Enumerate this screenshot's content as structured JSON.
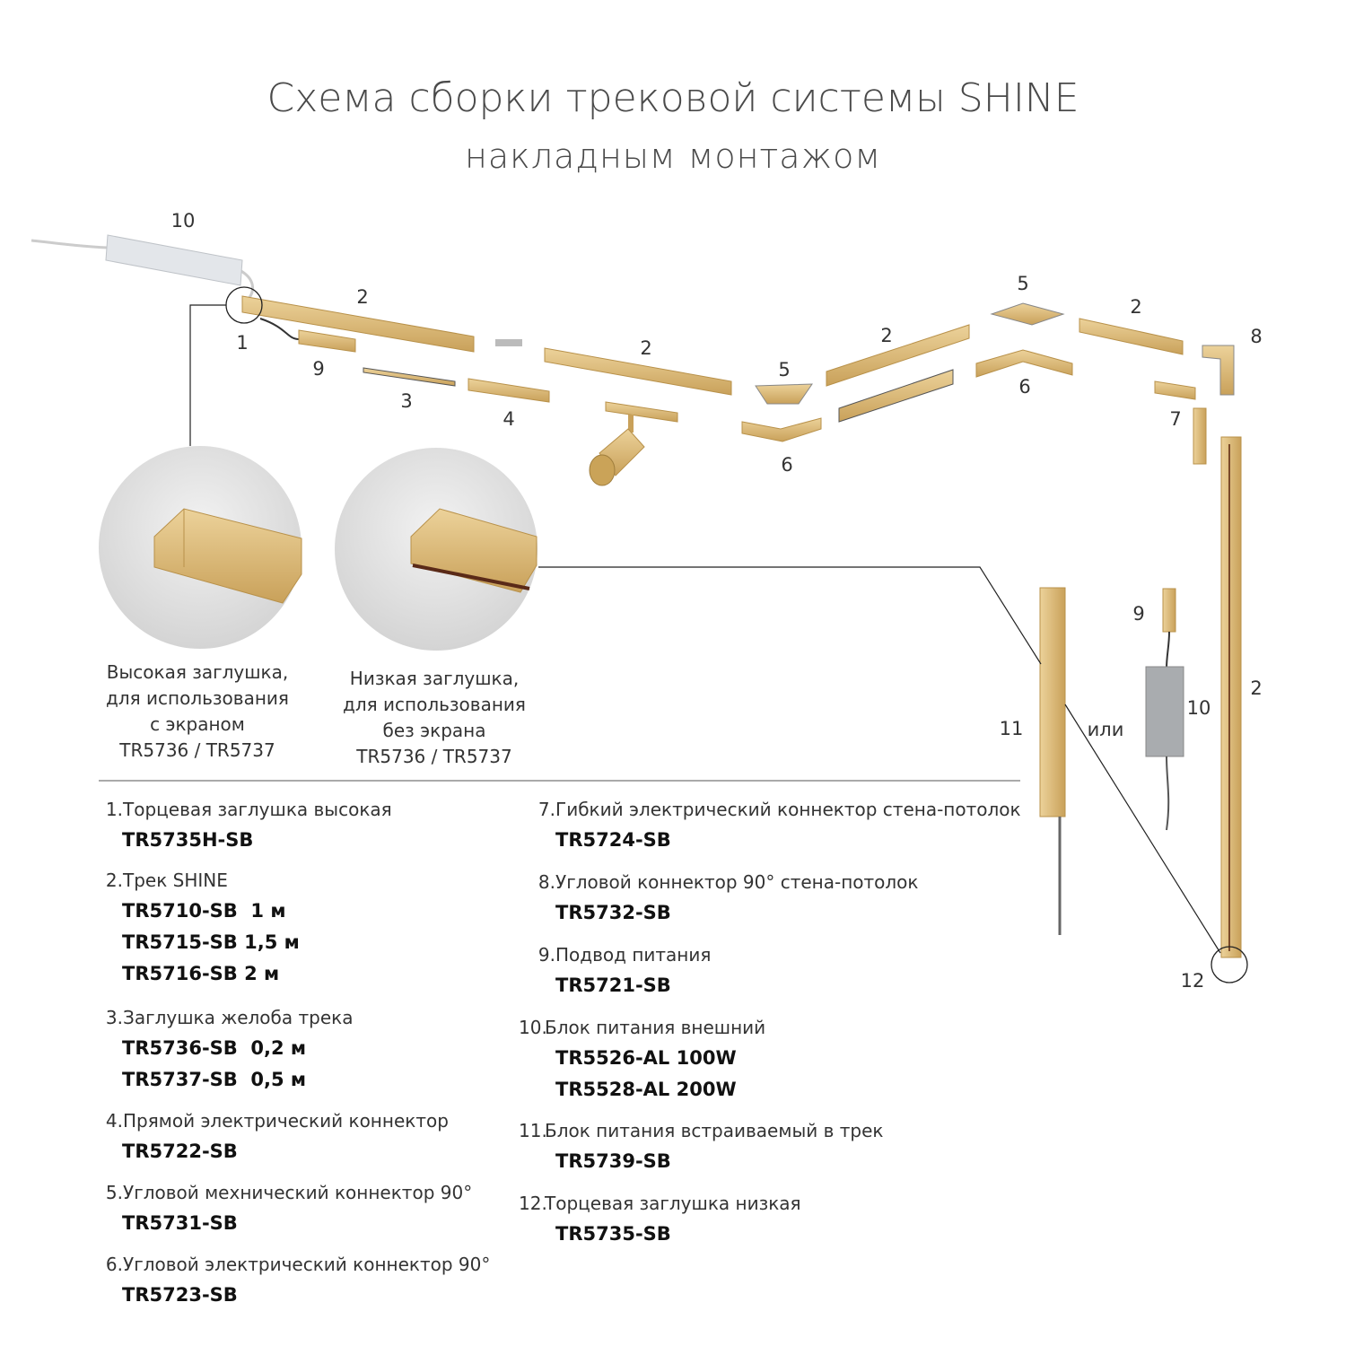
{
  "title": "Схема сборки трековой системы SHINE",
  "subtitle": "накладным монтажом",
  "colors": {
    "gold": "#d9b46f",
    "gold_dark": "#b8914a",
    "text": "#333333",
    "line": "#222222"
  },
  "diagram_labels": {
    "psu_top": "10",
    "track_a": "2",
    "endcap_high": "1",
    "feed_a": "9",
    "groove_cap": "3",
    "straight_conn": "4",
    "track_b": "2",
    "corner_mech_a": "5",
    "corner_el_a": "6",
    "track_c": "2",
    "corner_mech_b": "5",
    "corner_el_b": "6",
    "track_d": "2",
    "corner_wall": "8",
    "flex_conn": "7",
    "feed_b": "9",
    "psu_side": "10",
    "track_vertical": "2",
    "psu_builtin": "11",
    "or": "или",
    "endcap_low": "12"
  },
  "detail_high": {
    "lines": [
      "Высокая заглушка,",
      "для использования",
      "с экраном",
      "TR5736 / TR5737"
    ]
  },
  "detail_low": {
    "lines": [
      "Низкая заглушка,",
      "для использования",
      "без экрана",
      "TR5736 / TR5737"
    ]
  },
  "legend": [
    {
      "num": "1.",
      "name": "Торцевая заглушка высокая",
      "codes": [
        "TR5735H-SB"
      ]
    },
    {
      "num": "2.",
      "name": "Трек SHINE",
      "codes": [
        "TR5710-SB  1 м",
        "TR5715-SB 1,5 м",
        "TR5716-SB 2 м"
      ]
    },
    {
      "num": "3.",
      "name": "Заглушка желоба трека",
      "codes": [
        "TR5736-SB  0,2 м",
        "TR5737-SB  0,5 м"
      ]
    },
    {
      "num": "4.",
      "name": "Прямой электрический коннектор",
      "codes": [
        "TR5722-SB"
      ]
    },
    {
      "num": "5.",
      "name": "Угловой мехнический коннектор 90°",
      "codes": [
        "TR5731-SB"
      ]
    },
    {
      "num": "6.",
      "name": "Угловой электрический коннектор 90°",
      "codes": [
        "TR5723-SB"
      ]
    },
    {
      "num": "7.",
      "name": "Гибкий электрический коннектор стена-потолок",
      "codes": [
        "TR5724-SB"
      ]
    },
    {
      "num": "8.",
      "name": "Угловой коннектор 90° стена-потолок",
      "codes": [
        "TR5732-SB"
      ]
    },
    {
      "num": "9.",
      "name": "Подвод питания",
      "codes": [
        "TR5721-SB"
      ]
    },
    {
      "num": "10.",
      "name": "Блок питания внешний",
      "codes": [
        "TR5526-AL 100W",
        "TR5528-AL 200W"
      ]
    },
    {
      "num": "11.",
      "name": "Блок питания встраиваемый в трек",
      "codes": [
        "TR5739-SB"
      ]
    },
    {
      "num": "12.",
      "name": "Торцевая заглушка низкая",
      "codes": [
        "TR5735-SB"
      ]
    }
  ]
}
